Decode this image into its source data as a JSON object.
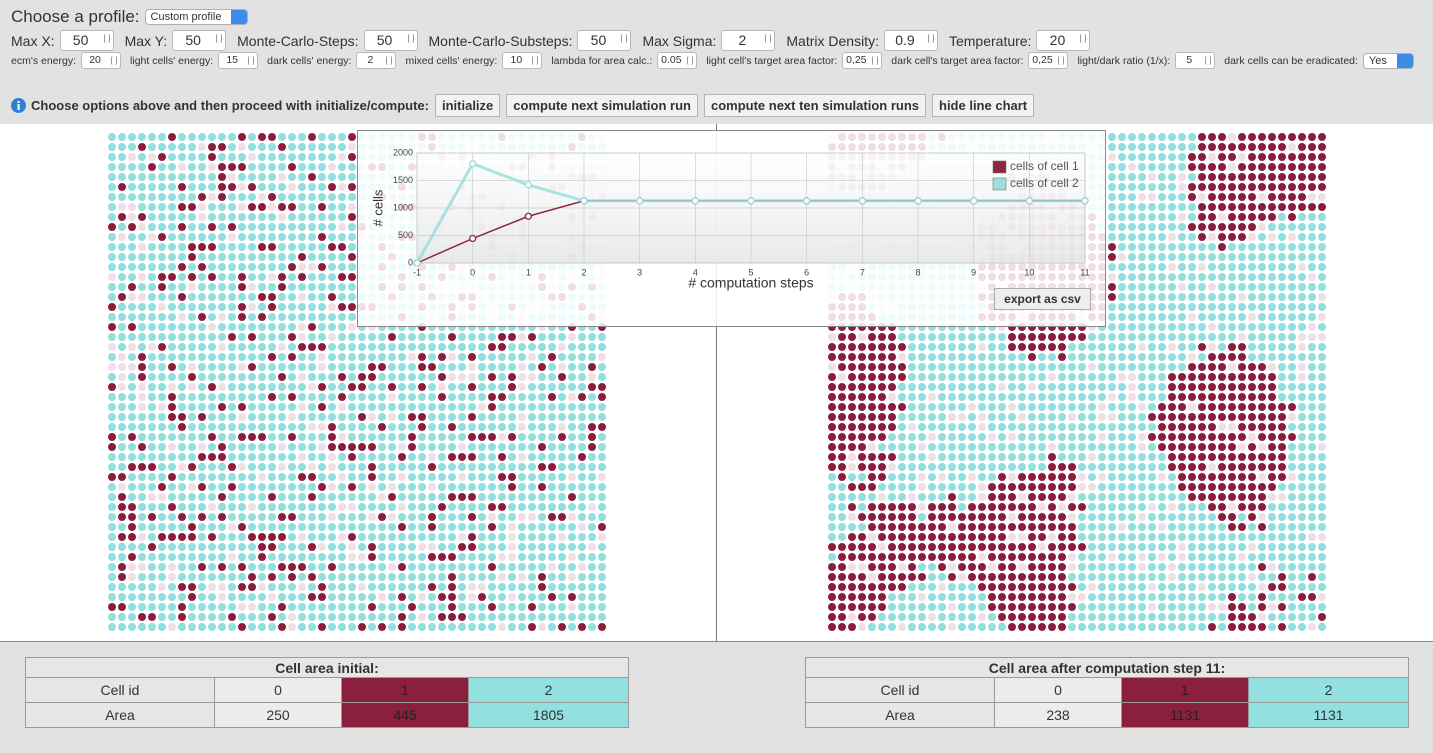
{
  "header": {
    "profile_label": "Choose a profile:",
    "profile_value": "Custom profile"
  },
  "params": [
    {
      "label": "Max X:",
      "value": 50
    },
    {
      "label": "Max Y:",
      "value": 50
    },
    {
      "label": "Monte-Carlo-Steps:",
      "value": 50
    },
    {
      "label": "Monte-Carlo-Substeps:",
      "value": 50
    },
    {
      "label": "Max Sigma:",
      "value": 2
    },
    {
      "label": "Matrix Density:",
      "value": 0.9
    },
    {
      "label": "Temperature:",
      "value": 20
    }
  ],
  "small_params": [
    {
      "label": "ecm's energy:",
      "value": 20
    },
    {
      "label": "light cells' energy:",
      "value": 15
    },
    {
      "label": "dark cells' energy:",
      "value": 2
    },
    {
      "label": "mixed cells' energy:",
      "value": 10
    },
    {
      "label": "lambda for area calc.:",
      "value": 0.05
    },
    {
      "label": "light cell's target area factor:",
      "value": "0,25"
    },
    {
      "label": "dark cell's target area factor:",
      "value": "0,25"
    },
    {
      "label": "light/dark ratio (1/x):",
      "value": 5
    }
  ],
  "eradicate": {
    "label": "dark cells can be eradicated:",
    "value": "Yes"
  },
  "instruction": "Choose options above and then proceed with initialize/compute:",
  "buttons": [
    "initialize",
    "compute next simulation run",
    "compute next ten simulation runs",
    "hide line chart"
  ],
  "chart_data": {
    "type": "line",
    "x_label": "# computation steps",
    "y_label": "# cells",
    "x": [
      -1,
      0,
      1,
      2,
      3,
      4,
      5,
      6,
      7,
      8,
      9,
      10,
      11
    ],
    "series": [
      {
        "name": "cells of cell 1",
        "color": "#8e2740",
        "values": [
          0,
          445,
          850,
          1131,
          1131,
          1131,
          1131,
          1131,
          1131,
          1131,
          1131,
          1131,
          1131
        ]
      },
      {
        "name": "cells of cell 2",
        "color": "#9adede",
        "values": [
          0,
          1805,
          1420,
          1131,
          1131,
          1131,
          1131,
          1131,
          1131,
          1131,
          1131,
          1131,
          1131
        ]
      }
    ],
    "xlim": [
      -1,
      11
    ],
    "xticks": [
      -1,
      0,
      1,
      2,
      3,
      4,
      5,
      6,
      7,
      8,
      9,
      10,
      11
    ],
    "ylim": [
      0,
      2000
    ],
    "yticks": [
      0,
      500,
      1000,
      1500,
      2000
    ],
    "grid": true,
    "legend": "upper right"
  },
  "export_button": "export as csv",
  "tables": [
    {
      "title": "Cell area initial:",
      "rows": [
        [
          "Cell id",
          0,
          1,
          2
        ],
        [
          "Area",
          250,
          445,
          1805
        ]
      ]
    },
    {
      "title": "Cell area after computation step 11:",
      "rows": [
        [
          "Cell id",
          0,
          1,
          2
        ],
        [
          "Area",
          238,
          1131,
          1131
        ]
      ]
    }
  ]
}
